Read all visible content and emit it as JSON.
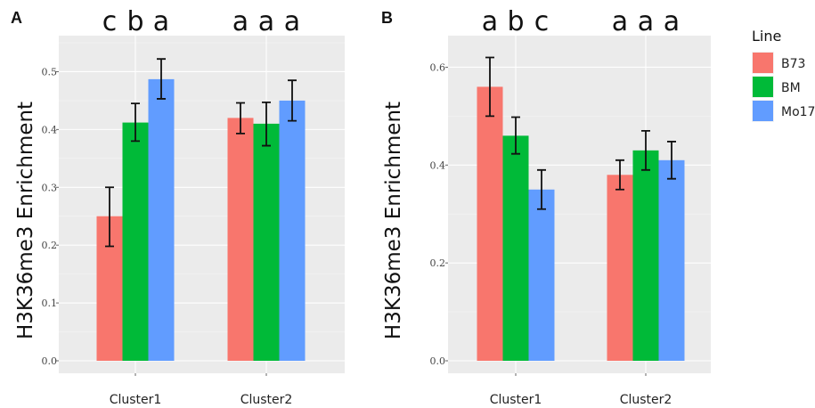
{
  "legend": {
    "title": "Line",
    "items": [
      {
        "label": "B73",
        "color": "#f8766d"
      },
      {
        "label": "BM",
        "color": "#00ba38"
      },
      {
        "label": "Mo17",
        "color": "#619cff"
      }
    ]
  },
  "chart_data": [
    {
      "type": "bar",
      "panel": "A",
      "ylabel": "H3K36me3 Enrichment",
      "xlabel": "",
      "categories": [
        "Cluster1",
        "Cluster2"
      ],
      "ylim": [
        0,
        0.55
      ],
      "yticks": [
        0.0,
        0.1,
        0.2,
        0.3,
        0.4,
        0.5
      ],
      "ytick_labels": [
        "0.0",
        "0.1",
        "0.2",
        "0.3",
        "0.4",
        "0.5"
      ],
      "significance": [
        [
          "c",
          "b",
          "a"
        ],
        [
          "a",
          "a",
          "a"
        ]
      ],
      "series": [
        {
          "name": "B73",
          "values": [
            0.25,
            0.42
          ],
          "err_low": [
            0.198,
            0.393
          ],
          "err_high": [
            0.3,
            0.446
          ]
        },
        {
          "name": "BM",
          "values": [
            0.412,
            0.41
          ],
          "err_low": [
            0.38,
            0.372
          ],
          "err_high": [
            0.445,
            0.447
          ]
        },
        {
          "name": "Mo17",
          "values": [
            0.487,
            0.45
          ],
          "err_low": [
            0.453,
            0.415
          ],
          "err_high": [
            0.522,
            0.485
          ]
        }
      ],
      "grid": true
    },
    {
      "type": "bar",
      "panel": "B",
      "ylabel": "H3K36me3 Enrichment",
      "xlabel": "",
      "categories": [
        "Cluster1",
        "Cluster2"
      ],
      "ylim": [
        0,
        0.65
      ],
      "yticks": [
        0.0,
        0.2,
        0.4,
        0.6
      ],
      "ytick_labels": [
        "0.0",
        "0.2",
        "0.4",
        "0.6"
      ],
      "significance": [
        [
          "a",
          "b",
          "c"
        ],
        [
          "a",
          "a",
          "a"
        ]
      ],
      "series": [
        {
          "name": "B73",
          "values": [
            0.56,
            0.38
          ],
          "err_low": [
            0.5,
            0.35
          ],
          "err_high": [
            0.62,
            0.41
          ]
        },
        {
          "name": "BM",
          "values": [
            0.46,
            0.43
          ],
          "err_low": [
            0.423,
            0.39
          ],
          "err_high": [
            0.498,
            0.47
          ]
        },
        {
          "name": "Mo17",
          "values": [
            0.35,
            0.41
          ],
          "err_low": [
            0.31,
            0.372
          ],
          "err_high": [
            0.39,
            0.448
          ]
        }
      ],
      "grid": true
    }
  ]
}
